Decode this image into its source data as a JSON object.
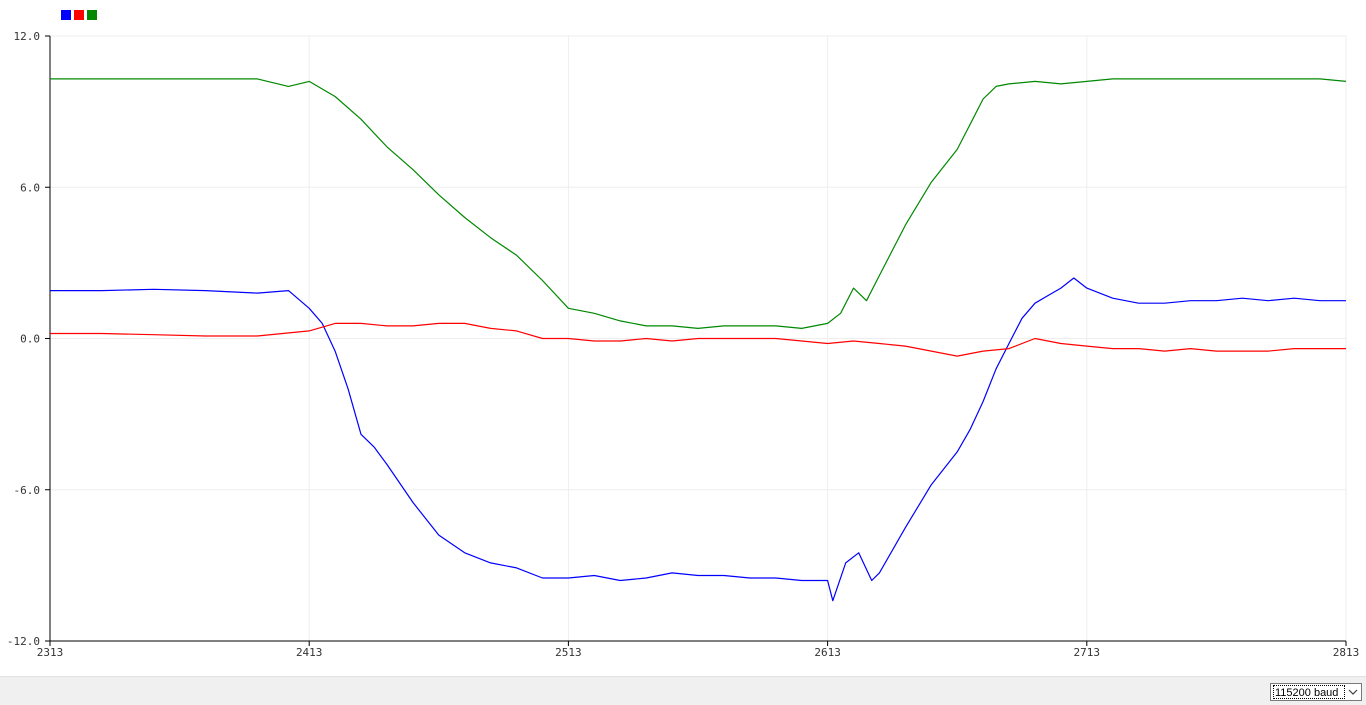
{
  "toolbar": {
    "baud_rate": "115200 baud"
  },
  "colors": {
    "background": "#ffffff",
    "grid": "#eeeeee",
    "axis": "#000000",
    "bottom_bar": "#f0f0f0"
  },
  "chart_data": {
    "type": "line",
    "title": "",
    "xlabel": "",
    "ylabel": "",
    "xlim": [
      2313,
      2813
    ],
    "ylim": [
      -12,
      12
    ],
    "x_ticks": [
      "2313",
      "2413",
      "2513",
      "2613",
      "2713",
      "2813"
    ],
    "y_ticks": [
      "12.0",
      "6.0",
      "0.0",
      "-6.0",
      "-12.0"
    ],
    "x_tick_values": [
      2313,
      2413,
      2513,
      2613,
      2713,
      2813
    ],
    "y_tick_values": [
      12,
      6,
      0,
      -6,
      -12
    ],
    "grid": true,
    "legend": "top-left",
    "series": [
      {
        "color": "#0000ff",
        "x": [
          2313,
          2333,
          2353,
          2373,
          2393,
          2405,
          2413,
          2418,
          2423,
          2428,
          2433,
          2438,
          2443,
          2453,
          2463,
          2473,
          2483,
          2493,
          2503,
          2513,
          2523,
          2533,
          2543,
          2553,
          2563,
          2573,
          2583,
          2593,
          2603,
          2613,
          2615,
          2620,
          2625,
          2630,
          2633,
          2643,
          2653,
          2663,
          2668,
          2673,
          2678,
          2683,
          2688,
          2693,
          2698,
          2703,
          2708,
          2713,
          2723,
          2733,
          2743,
          2753,
          2763,
          2773,
          2783,
          2793,
          2803,
          2813
        ],
        "y": [
          1.9,
          1.9,
          1.95,
          1.9,
          1.8,
          1.9,
          1.2,
          0.6,
          -0.5,
          -2.0,
          -3.8,
          -4.3,
          -5.0,
          -6.5,
          -7.8,
          -8.5,
          -8.9,
          -9.1,
          -9.5,
          -9.5,
          -9.4,
          -9.6,
          -9.5,
          -9.3,
          -9.4,
          -9.4,
          -9.5,
          -9.5,
          -9.6,
          -9.6,
          -10.4,
          -8.9,
          -8.5,
          -9.6,
          -9.3,
          -7.5,
          -5.8,
          -4.5,
          -3.6,
          -2.5,
          -1.2,
          -0.2,
          0.8,
          1.4,
          1.7,
          2.0,
          2.4,
          2.0,
          1.6,
          1.4,
          1.4,
          1.5,
          1.5,
          1.6,
          1.5,
          1.6,
          1.5,
          1.5
        ]
      },
      {
        "color": "#ff0000",
        "x": [
          2313,
          2333,
          2353,
          2373,
          2393,
          2413,
          2423,
          2433,
          2443,
          2453,
          2463,
          2473,
          2483,
          2493,
          2503,
          2513,
          2523,
          2533,
          2543,
          2553,
          2563,
          2573,
          2583,
          2593,
          2603,
          2613,
          2623,
          2633,
          2643,
          2653,
          2663,
          2673,
          2683,
          2693,
          2703,
          2713,
          2723,
          2733,
          2743,
          2753,
          2763,
          2773,
          2783,
          2793,
          2803,
          2813
        ],
        "y": [
          0.2,
          0.2,
          0.15,
          0.1,
          0.1,
          0.3,
          0.6,
          0.6,
          0.5,
          0.5,
          0.6,
          0.6,
          0.4,
          0.3,
          0.0,
          0.0,
          -0.1,
          -0.1,
          0.0,
          -0.1,
          0.0,
          0.0,
          0.0,
          0.0,
          -0.1,
          -0.2,
          -0.1,
          -0.2,
          -0.3,
          -0.5,
          -0.7,
          -0.5,
          -0.4,
          0.0,
          -0.2,
          -0.3,
          -0.4,
          -0.4,
          -0.5,
          -0.4,
          -0.5,
          -0.5,
          -0.5,
          -0.4,
          -0.4,
          -0.4
        ]
      },
      {
        "color": "#008800",
        "x": [
          2313,
          2333,
          2353,
          2373,
          2393,
          2405,
          2413,
          2423,
          2433,
          2443,
          2453,
          2463,
          2473,
          2483,
          2493,
          2503,
          2513,
          2523,
          2533,
          2543,
          2553,
          2563,
          2573,
          2583,
          2593,
          2603,
          2613,
          2618,
          2623,
          2628,
          2633,
          2643,
          2653,
          2663,
          2668,
          2673,
          2678,
          2683,
          2693,
          2703,
          2713,
          2723,
          2733,
          2743,
          2753,
          2763,
          2773,
          2783,
          2793,
          2803,
          2813
        ],
        "y": [
          10.3,
          10.3,
          10.3,
          10.3,
          10.3,
          10.0,
          10.2,
          9.6,
          8.7,
          7.6,
          6.7,
          5.7,
          4.8,
          4.0,
          3.3,
          2.3,
          1.2,
          1.0,
          0.7,
          0.5,
          0.5,
          0.4,
          0.5,
          0.5,
          0.5,
          0.4,
          0.6,
          1.0,
          2.0,
          1.5,
          2.5,
          4.5,
          6.2,
          7.5,
          8.5,
          9.5,
          10.0,
          10.1,
          10.2,
          10.1,
          10.2,
          10.3,
          10.3,
          10.3,
          10.3,
          10.3,
          10.3,
          10.3,
          10.3,
          10.3,
          10.2
        ]
      }
    ]
  }
}
